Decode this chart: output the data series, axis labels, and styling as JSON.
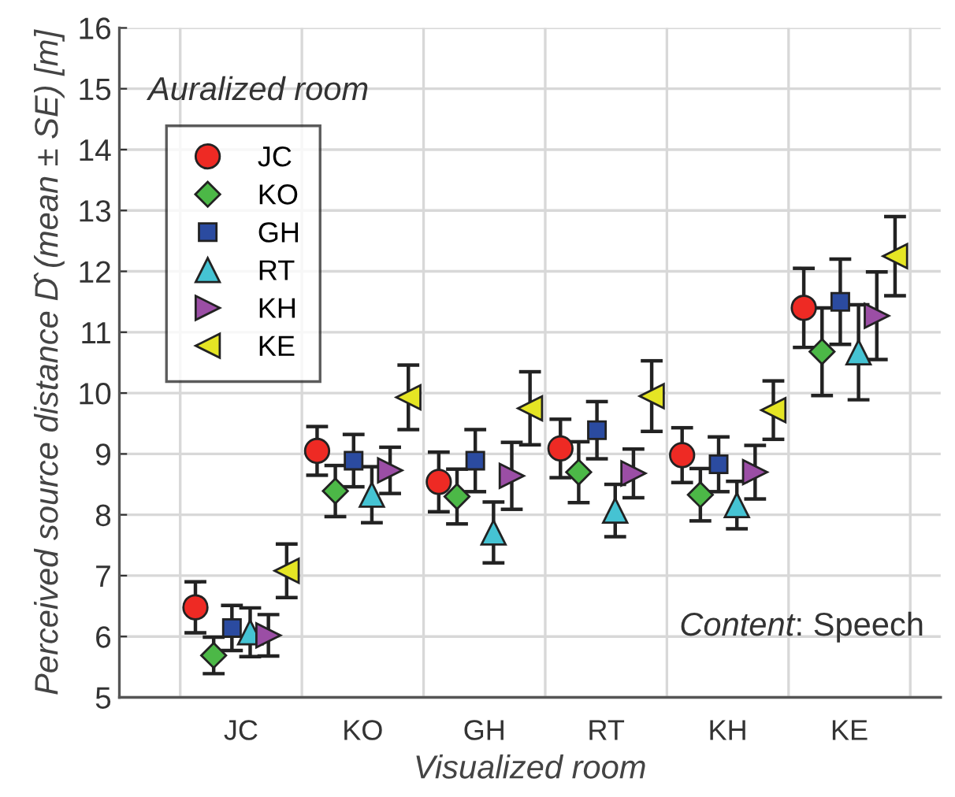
{
  "chart_data": {
    "type": "scatter",
    "xlabel": "Visualized room",
    "ylabel": "Perceived source distance D̂ (mean ± SE) [m]",
    "legend_title": "Auralized room",
    "categories": [
      "JC",
      "KO",
      "GH",
      "RT",
      "KH",
      "KE"
    ],
    "ylim": [
      5,
      16
    ],
    "yticks": [
      5,
      6,
      7,
      8,
      9,
      10,
      11,
      12,
      13,
      14,
      15,
      16
    ],
    "grid": true,
    "legend": "top left",
    "annotations": [
      "Content: Speech"
    ],
    "series": [
      {
        "name": "JC",
        "color": "#ee2a24",
        "marker": "circle",
        "values": [
          6.48,
          9.05,
          8.54,
          9.09,
          8.98,
          11.4
        ],
        "errors": [
          0.42,
          0.4,
          0.49,
          0.48,
          0.45,
          0.65
        ]
      },
      {
        "name": "KO",
        "color": "#4cb847",
        "marker": "diamond",
        "values": [
          5.69,
          8.39,
          8.3,
          8.7,
          8.33,
          10.68
        ],
        "errors": [
          0.3,
          0.42,
          0.45,
          0.5,
          0.43,
          0.72
        ]
      },
      {
        "name": "GH",
        "color": "#2b4ba0",
        "marker": "square",
        "values": [
          6.14,
          8.89,
          8.89,
          9.39,
          8.83,
          11.5
        ],
        "errors": [
          0.37,
          0.43,
          0.51,
          0.47,
          0.45,
          0.7
        ]
      },
      {
        "name": "RT",
        "color": "#45c3d3",
        "marker": "triangle",
        "values": [
          6.07,
          8.33,
          7.71,
          8.07,
          8.16,
          10.67
        ],
        "errors": [
          0.4,
          0.46,
          0.5,
          0.43,
          0.39,
          0.78
        ]
      },
      {
        "name": "KH",
        "color": "#9b4ea5",
        "marker": "triangle-right",
        "values": [
          6.02,
          8.73,
          8.64,
          8.68,
          8.7,
          11.27
        ],
        "errors": [
          0.34,
          0.38,
          0.55,
          0.4,
          0.44,
          0.72
        ]
      },
      {
        "name": "KE",
        "color": "#e5e524",
        "marker": "triangle-left",
        "values": [
          7.08,
          9.93,
          9.75,
          9.95,
          9.72,
          12.25
        ],
        "errors": [
          0.44,
          0.53,
          0.6,
          0.58,
          0.48,
          0.65
        ]
      }
    ]
  }
}
